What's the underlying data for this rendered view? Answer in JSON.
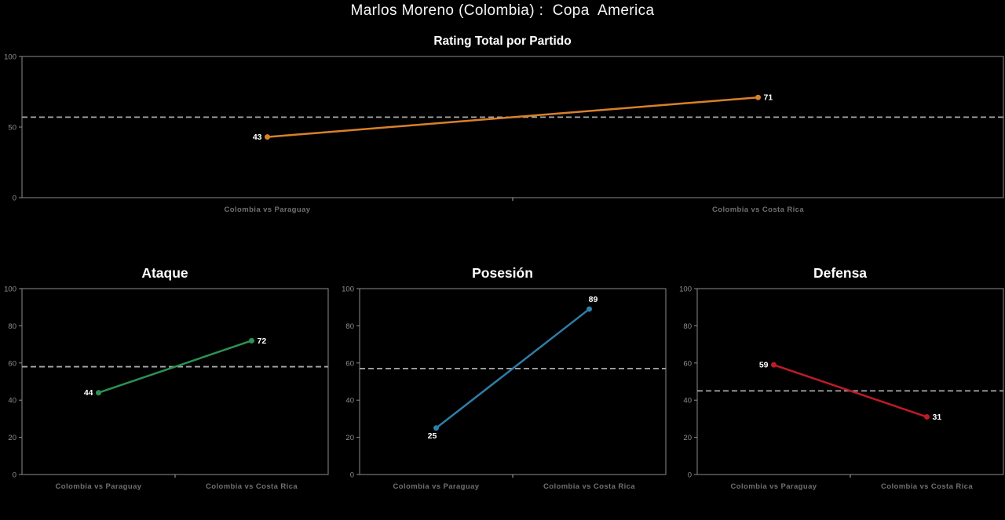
{
  "page": {
    "title": "Marlos Moreno (Colombia) :  Copa  America",
    "background": "#000000"
  },
  "styles": {
    "spine_color": "#8c8c8c",
    "mean_line_color": "#a8a8a8",
    "ytick_label_color": "#8f8f8f",
    "category_label_color": "#707070",
    "value_label_color": "#ffffff"
  },
  "chart_data": [
    {
      "id": "rating-total",
      "type": "line",
      "title": "Rating Total por Partido",
      "categories": [
        "Colombia vs Paraguay",
        "Colombia vs Costa Rica"
      ],
      "values": [
        43,
        71
      ],
      "mean_line": 57,
      "color": "#d9802b",
      "ylim": [
        0,
        100
      ],
      "yticks": [
        0,
        50,
        100
      ],
      "grid": false,
      "legend": "none",
      "label_pos": [
        "left",
        "right"
      ]
    },
    {
      "id": "ataque",
      "type": "line",
      "title": "Ataque",
      "categories": [
        "Colombia vs Paraguay",
        "Colombia vs Costa Rica"
      ],
      "values": [
        44,
        72
      ],
      "mean_line": 58,
      "color": "#2e9154",
      "ylim": [
        0,
        100
      ],
      "yticks": [
        0,
        20,
        40,
        60,
        80,
        100
      ],
      "grid": false,
      "legend": "none",
      "label_pos": [
        "left",
        "right"
      ]
    },
    {
      "id": "posesion",
      "type": "line",
      "title": "Posesión",
      "categories": [
        "Colombia vs Paraguay",
        "Colombia vs Costa Rica"
      ],
      "values": [
        25,
        89
      ],
      "mean_line": 57,
      "color": "#2f7ea9",
      "ylim": [
        0,
        100
      ],
      "yticks": [
        0,
        20,
        40,
        60,
        80,
        100
      ],
      "grid": false,
      "legend": "none",
      "label_pos": [
        "below-left",
        "above"
      ]
    },
    {
      "id": "defensa",
      "type": "line",
      "title": "Defensa",
      "categories": [
        "Colombia vs Paraguay",
        "Colombia vs Costa Rica"
      ],
      "values": [
        59,
        31
      ],
      "mean_line": 45,
      "color": "#bf1b26",
      "ylim": [
        0,
        100
      ],
      "yticks": [
        0,
        20,
        40,
        60,
        80,
        100
      ],
      "grid": false,
      "legend": "none",
      "label_pos": [
        "left",
        "right"
      ]
    }
  ]
}
